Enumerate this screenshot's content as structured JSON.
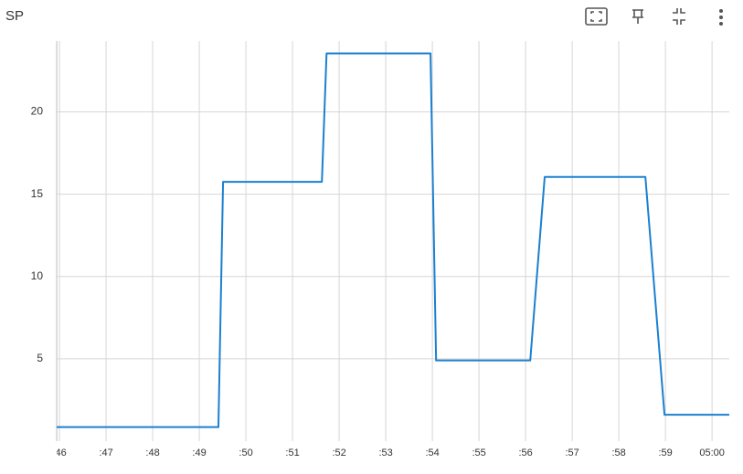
{
  "chart_data": {
    "type": "line",
    "title": "SP",
    "x": [
      45.94,
      49.41,
      49.51,
      51.63,
      51.73,
      53.96,
      54.08,
      56.1,
      56.41,
      58.57,
      58.98,
      60.37
    ],
    "series": [
      {
        "name": "SP",
        "color": "#1b80d0",
        "values": [
          0.85,
          0.85,
          15.75,
          15.75,
          23.55,
          23.55,
          4.9,
          4.9,
          16.05,
          16.05,
          1.6,
          1.6
        ]
      }
    ],
    "xlim": [
      45.94,
      60.37
    ],
    "xticks": [
      {
        "value": 46,
        "label": ":46"
      },
      {
        "value": 47,
        "label": ":47"
      },
      {
        "value": 48,
        "label": ":48"
      },
      {
        "value": 49,
        "label": ":49"
      },
      {
        "value": 50,
        "label": ":50"
      },
      {
        "value": 51,
        "label": ":51"
      },
      {
        "value": 52,
        "label": ":52"
      },
      {
        "value": 53,
        "label": ":53"
      },
      {
        "value": 54,
        "label": ":54"
      },
      {
        "value": 55,
        "label": ":55"
      },
      {
        "value": 56,
        "label": ":56"
      },
      {
        "value": 57,
        "label": ":57"
      },
      {
        "value": 58,
        "label": ":58"
      },
      {
        "value": 59,
        "label": ":59"
      },
      {
        "value": 60,
        "label": "05:00"
      }
    ],
    "ylim": [
      0,
      24.3
    ],
    "yticks": [
      5,
      10,
      15,
      20
    ],
    "grid": true
  }
}
